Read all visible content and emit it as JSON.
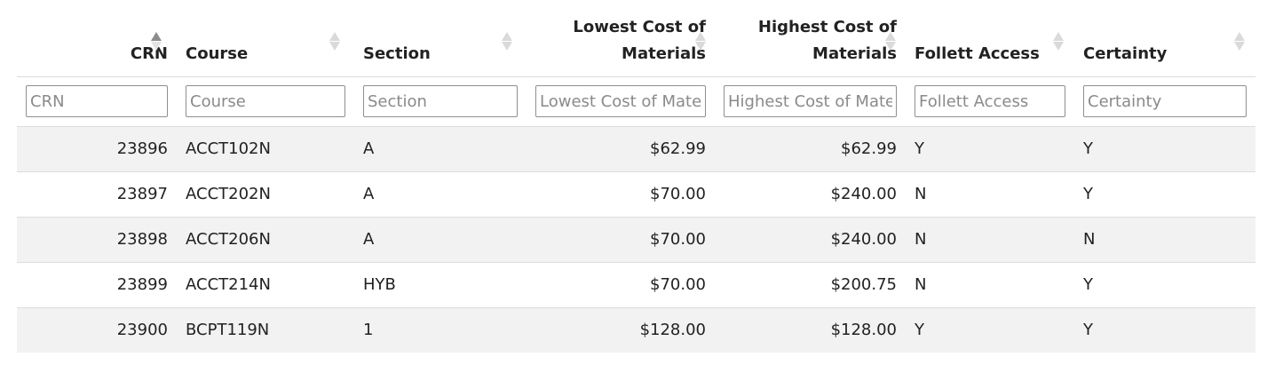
{
  "columns": [
    {
      "label": "CRN",
      "placeholder": "CRN"
    },
    {
      "label": "Course",
      "placeholder": "Course"
    },
    {
      "label": "Section",
      "placeholder": "Section"
    },
    {
      "label_line1": "Lowest Cost of",
      "label_line2": "Materials",
      "placeholder": "Lowest Cost of Materials"
    },
    {
      "label_line1": "Highest Cost of",
      "label_line2": "Materials",
      "placeholder": "Highest Cost of Materials"
    },
    {
      "label": "Follett Access",
      "placeholder": "Follett Access"
    },
    {
      "label": "Certainty",
      "placeholder": "Certainty"
    }
  ],
  "sort": {
    "column": "CRN",
    "direction": "ascending"
  },
  "rows": [
    {
      "crn": "23896",
      "course": "ACCT102N",
      "section": "A",
      "lowest": "$62.99",
      "highest": "$62.99",
      "follett": "Y",
      "certainty": "Y"
    },
    {
      "crn": "23897",
      "course": "ACCT202N",
      "section": "A",
      "lowest": "$70.00",
      "highest": "$240.00",
      "follett": "N",
      "certainty": "Y"
    },
    {
      "crn": "23898",
      "course": "ACCT206N",
      "section": "A",
      "lowest": "$70.00",
      "highest": "$240.00",
      "follett": "N",
      "certainty": "N"
    },
    {
      "crn": "23899",
      "course": "ACCT214N",
      "section": "HYB",
      "lowest": "$70.00",
      "highest": "$200.75",
      "follett": "N",
      "certainty": "Y"
    },
    {
      "crn": "23900",
      "course": "BCPT119N",
      "section": "1",
      "lowest": "$128.00",
      "highest": "$128.00",
      "follett": "Y",
      "certainty": "Y"
    }
  ]
}
